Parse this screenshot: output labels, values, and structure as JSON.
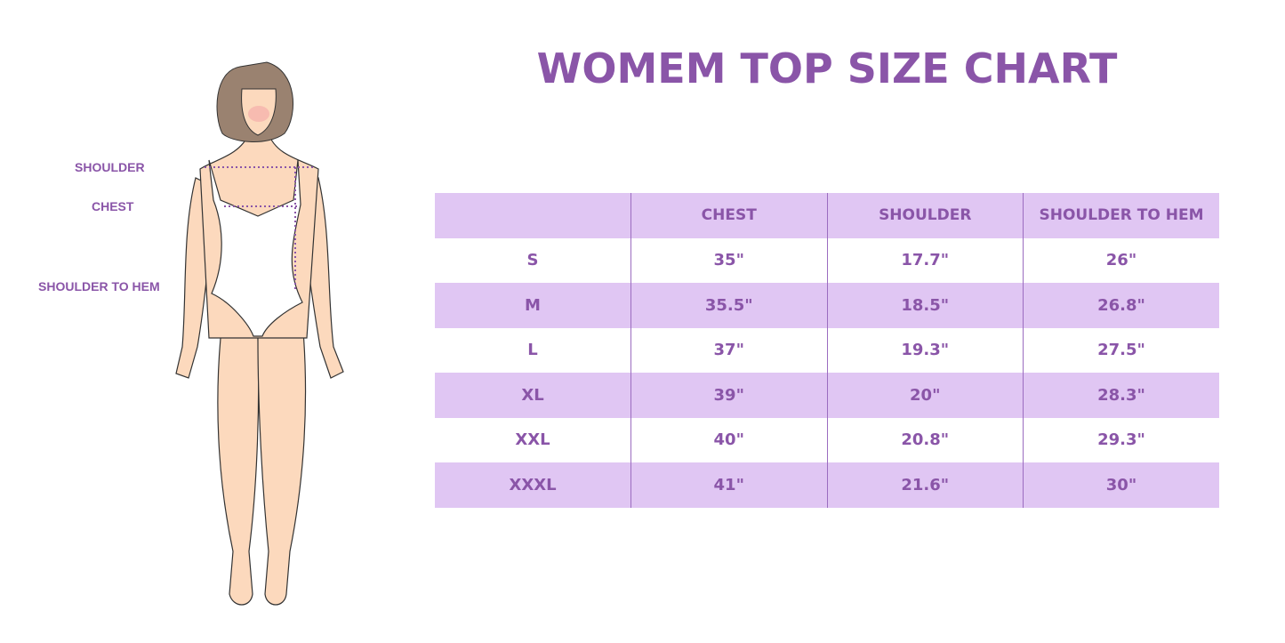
{
  "title": "WOMEM TOP SIZE CHART",
  "figure_labels": {
    "shoulder": "SHOULDER",
    "chest": "CHEST",
    "shoulder_to_hem": "SHOULDER TO HEM"
  },
  "colors": {
    "accent": "#8a55a8",
    "row_shade": "#e0c6f3",
    "skin": "#fcd9bd",
    "hair": "#9a8270"
  },
  "table": {
    "headers": [
      "",
      "CHEST",
      "SHOULDER",
      "SHOULDER TO HEM"
    ],
    "rows": [
      [
        "S",
        "35\"",
        "17.7\"",
        "26\""
      ],
      [
        "M",
        "35.5\"",
        "18.5\"",
        "26.8\""
      ],
      [
        "L",
        "37\"",
        "19.3\"",
        "27.5\""
      ],
      [
        "XL",
        "39\"",
        "20\"",
        "28.3\""
      ],
      [
        "XXL",
        "40\"",
        "20.8\"",
        "29.3\""
      ],
      [
        "XXXL",
        "41\"",
        "21.6\"",
        "30\""
      ]
    ]
  }
}
